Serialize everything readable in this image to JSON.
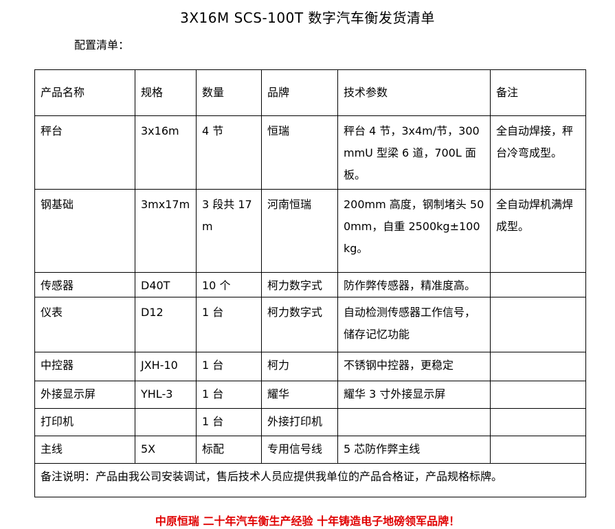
{
  "title": "3X16M SCS-100T 数字汽车衡发货清单",
  "subtitle": "配置清单：",
  "table": {
    "headers": [
      "产品名称",
      "规格",
      "数量",
      "品牌",
      "技术参数",
      "备注"
    ],
    "rows": [
      [
        "秤台",
        "3x16m",
        "4 节",
        "恒瑞",
        "秤台 4 节，3x4m/节，300mmU 型梁 6 道，700L 面板。",
        "全自动焊接，秤台冷弯成型。"
      ],
      [
        "钢基础",
        "3mx17m",
        "3 段共 17m",
        "河南恒瑞",
        "200mm 高度，钢制堵头 500mm，自重 2500kg±100kg。",
        "全自动焊机满焊成型。"
      ],
      [
        "传感器",
        "D40T",
        "10 个",
        "柯力数字式",
        "防作弊传感器，精准度高。",
        ""
      ],
      [
        "仪表",
        "D12",
        "1 台",
        "柯力数字式",
        "自动检测传感器工作信号，储存记忆功能",
        ""
      ],
      [
        "中控器",
        "JXH-10",
        "1 台",
        "柯力",
        "不锈钢中控器，更稳定",
        ""
      ],
      [
        "外接显示屏",
        "YHL-3",
        "1 台",
        "耀华",
        "耀华 3 寸外接显示屏",
        ""
      ],
      [
        "打印机",
        "",
        "1 台",
        "外接打印机",
        "",
        ""
      ],
      [
        "主线",
        "5X",
        "标配",
        "专用信号线",
        "5 芯防作弊主线",
        ""
      ]
    ],
    "note": "备注说明：产品由我公司安装调试，售后技术人员应提供我单位的产品合格证，产品规格标牌。"
  },
  "footer": "中原恒瑞 二十年汽车衡生产经验 十年铸造电子地磅领军品牌！"
}
